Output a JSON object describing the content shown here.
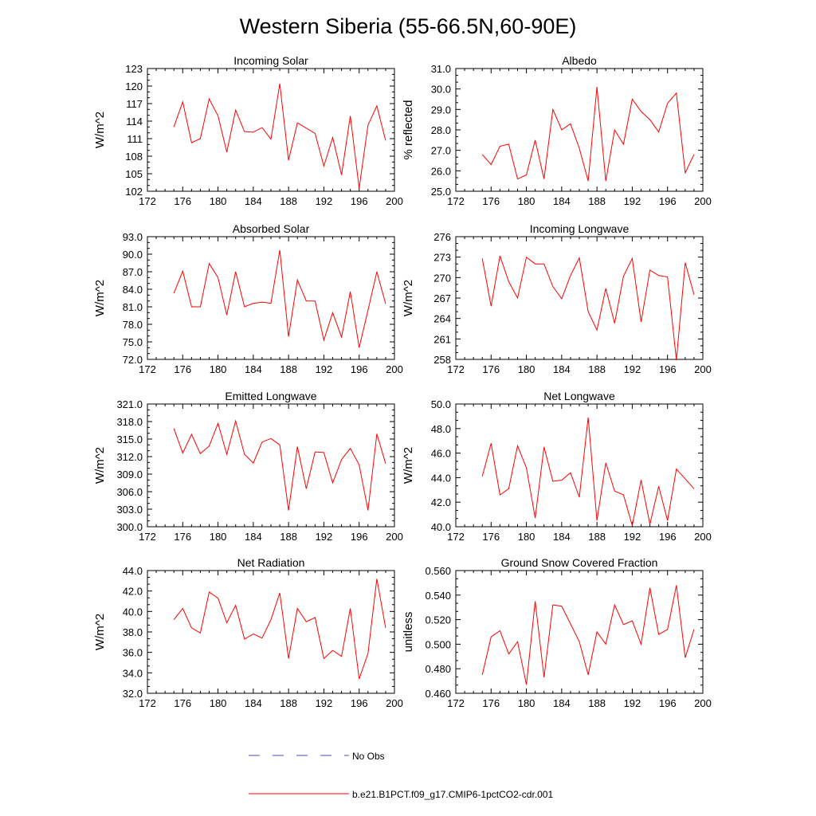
{
  "figure": {
    "title": "Western Siberia (55-66.5N,60-90E)"
  },
  "legend": {
    "items": [
      {
        "label": "No Obs",
        "color": "#4a4ad8",
        "style": "dashed"
      },
      {
        "label": "b.e21.B1PCT.f09_g17.CMIP6-1pctCO2-cdr.001",
        "color": "#ff0000",
        "style": "solid"
      }
    ]
  },
  "chart_data": [
    {
      "type": "line",
      "title": "Incoming Solar",
      "xlabel": "",
      "ylabel": "W/m^2",
      "xlim": [
        172,
        200
      ],
      "xticks": [
        172,
        176,
        180,
        184,
        188,
        192,
        196,
        200
      ],
      "ylim": [
        102,
        123
      ],
      "yticks": [
        "102",
        "105",
        "108",
        "111",
        "114",
        "117",
        "120",
        "123"
      ],
      "grid": false,
      "series": [
        {
          "name": "b.e21.B1PCT.f09_g17.CMIP6-1pctCO2-cdr.001",
          "color": "#ff0000",
          "x": [
            175,
            176,
            177,
            178,
            179,
            180,
            181,
            182,
            183,
            184,
            185,
            186,
            187,
            188,
            189,
            190,
            191,
            192,
            193,
            194,
            195,
            196,
            197,
            198,
            199
          ],
          "y": [
            113.0,
            117.3,
            110.3,
            111.0,
            117.8,
            114.9,
            108.7,
            115.9,
            112.2,
            112.1,
            112.9,
            110.9,
            120.4,
            107.3,
            113.7,
            112.8,
            111.9,
            106.3,
            111.2,
            104.8,
            114.9,
            102.5,
            113.3,
            116.6,
            110.7
          ]
        }
      ]
    },
    {
      "type": "line",
      "title": "Albedo",
      "xlabel": "",
      "ylabel": "% reflected",
      "xlim": [
        172,
        200
      ],
      "xticks": [
        172,
        176,
        180,
        184,
        188,
        192,
        196,
        200
      ],
      "ylim": [
        25.0,
        31.0
      ],
      "yticks": [
        "25.0",
        "26.0",
        "27.0",
        "28.0",
        "29.0",
        "30.0",
        "31.0"
      ],
      "grid": false,
      "series": [
        {
          "name": "b.e21.B1PCT.f09_g17.CMIP6-1pctCO2-cdr.001",
          "color": "#ff0000",
          "x": [
            175,
            176,
            177,
            178,
            179,
            180,
            181,
            182,
            183,
            184,
            185,
            186,
            187,
            188,
            189,
            190,
            191,
            192,
            193,
            194,
            195,
            196,
            197,
            198,
            199
          ],
          "y": [
            26.8,
            26.3,
            27.2,
            27.3,
            25.6,
            25.8,
            27.5,
            25.6,
            29.0,
            28.0,
            28.3,
            27.1,
            25.5,
            30.1,
            25.5,
            28.0,
            27.3,
            29.5,
            28.9,
            28.5,
            27.9,
            29.3,
            29.8,
            25.9,
            26.8
          ]
        }
      ]
    },
    {
      "type": "line",
      "title": "Absorbed Solar",
      "xlabel": "",
      "ylabel": "W/m^2",
      "xlim": [
        172,
        200
      ],
      "xticks": [
        172,
        176,
        180,
        184,
        188,
        192,
        196,
        200
      ],
      "ylim": [
        72.0,
        93.0
      ],
      "yticks": [
        "72.0",
        "75.0",
        "78.0",
        "81.0",
        "84.0",
        "87.0",
        "90.0",
        "93.0"
      ],
      "grid": false,
      "series": [
        {
          "name": "b.e21.B1PCT.f09_g17.CMIP6-1pctCO2-cdr.001",
          "color": "#ff0000",
          "x": [
            175,
            176,
            177,
            178,
            179,
            180,
            181,
            182,
            183,
            184,
            185,
            186,
            187,
            188,
            189,
            190,
            191,
            192,
            193,
            194,
            195,
            196,
            197,
            198,
            199
          ],
          "y": [
            83.3,
            87.1,
            81.0,
            81.0,
            88.4,
            86.0,
            79.6,
            87.0,
            81.0,
            81.6,
            81.8,
            81.6,
            90.7,
            75.9,
            85.6,
            82.0,
            82.0,
            75.3,
            80.0,
            75.8,
            83.6,
            74.0,
            80.4,
            87.0,
            81.5
          ]
        }
      ]
    },
    {
      "type": "line",
      "title": "Incoming Longwave",
      "xlabel": "",
      "ylabel": "W/m^2",
      "xlim": [
        172,
        200
      ],
      "xticks": [
        172,
        176,
        180,
        184,
        188,
        192,
        196,
        200
      ],
      "ylim": [
        258,
        276
      ],
      "yticks": [
        "258",
        "261",
        "264",
        "267",
        "270",
        "273",
        "276"
      ],
      "grid": false,
      "series": [
        {
          "name": "b.e21.B1PCT.f09_g17.CMIP6-1pctCO2-cdr.001",
          "color": "#ff0000",
          "x": [
            175,
            176,
            177,
            178,
            179,
            180,
            181,
            182,
            183,
            184,
            185,
            186,
            187,
            188,
            189,
            190,
            191,
            192,
            193,
            194,
            195,
            196,
            197,
            198,
            199
          ],
          "y": [
            272.8,
            265.8,
            273.2,
            269.4,
            267.0,
            273.0,
            272.0,
            272.0,
            268.7,
            266.9,
            270.3,
            272.9,
            265.0,
            262.3,
            268.4,
            263.3,
            270.2,
            272.8,
            263.5,
            271.1,
            270.3,
            270.1,
            257.9,
            272.2,
            267.5
          ]
        }
      ]
    },
    {
      "type": "line",
      "title": "Emitted Longwave",
      "xlabel": "",
      "ylabel": "W/m^2",
      "xlim": [
        172,
        200
      ],
      "xticks": [
        172,
        176,
        180,
        184,
        188,
        192,
        196,
        200
      ],
      "ylim": [
        300.0,
        321.0
      ],
      "yticks": [
        "300.0",
        "303.0",
        "306.0",
        "309.0",
        "312.0",
        "315.0",
        "318.0",
        "321.0"
      ],
      "grid": false,
      "series": [
        {
          "name": "b.e21.B1PCT.f09_g17.CMIP6-1pctCO2-cdr.001",
          "color": "#ff0000",
          "x": [
            175,
            176,
            177,
            178,
            179,
            180,
            181,
            182,
            183,
            184,
            185,
            186,
            187,
            188,
            189,
            190,
            191,
            192,
            193,
            194,
            195,
            196,
            197,
            198,
            199
          ],
          "y": [
            316.8,
            312.6,
            315.8,
            312.5,
            313.8,
            317.7,
            312.4,
            318.1,
            312.4,
            310.9,
            314.5,
            315.1,
            314.0,
            302.8,
            313.7,
            306.5,
            312.8,
            312.7,
            307.5,
            311.5,
            313.4,
            310.6,
            302.8,
            315.9,
            310.8
          ]
        }
      ]
    },
    {
      "type": "line",
      "title": "Net Longwave",
      "xlabel": "",
      "ylabel": "W/m^2",
      "xlim": [
        172,
        200
      ],
      "xticks": [
        172,
        176,
        180,
        184,
        188,
        192,
        196,
        200
      ],
      "ylim": [
        40.0,
        50.0
      ],
      "yticks": [
        "40.0",
        "42.0",
        "44.0",
        "46.0",
        "48.0",
        "50.0"
      ],
      "grid": false,
      "series": [
        {
          "name": "b.e21.B1PCT.f09_g17.CMIP6-1pctCO2-cdr.001",
          "color": "#ff0000",
          "x": [
            175,
            176,
            177,
            178,
            179,
            180,
            181,
            182,
            183,
            184,
            185,
            186,
            187,
            188,
            189,
            190,
            191,
            192,
            193,
            194,
            195,
            196,
            197,
            198,
            199
          ],
          "y": [
            44.1,
            46.8,
            42.6,
            43.1,
            46.6,
            44.8,
            40.7,
            46.5,
            43.7,
            43.8,
            44.4,
            42.4,
            48.9,
            40.5,
            45.2,
            42.9,
            42.6,
            40.1,
            43.8,
            40.2,
            43.3,
            40.5,
            44.7,
            43.9,
            43.1
          ]
        }
      ]
    },
    {
      "type": "line",
      "title": "Net Radiation",
      "xlabel": "",
      "ylabel": "W/m^2",
      "xlim": [
        172,
        200
      ],
      "xticks": [
        172,
        176,
        180,
        184,
        188,
        192,
        196,
        200
      ],
      "ylim": [
        32.0,
        44.0
      ],
      "yticks": [
        "32.0",
        "34.0",
        "36.0",
        "38.0",
        "40.0",
        "42.0",
        "44.0"
      ],
      "grid": false,
      "series": [
        {
          "name": "b.e21.B1PCT.f09_g17.CMIP6-1pctCO2-cdr.001",
          "color": "#ff0000",
          "x": [
            175,
            176,
            177,
            178,
            179,
            180,
            181,
            182,
            183,
            184,
            185,
            186,
            187,
            188,
            189,
            190,
            191,
            192,
            193,
            194,
            195,
            196,
            197,
            198,
            199
          ],
          "y": [
            39.2,
            40.3,
            38.4,
            37.9,
            41.9,
            41.3,
            38.9,
            40.6,
            37.3,
            37.8,
            37.4,
            39.2,
            41.8,
            35.4,
            40.3,
            39.0,
            39.4,
            35.4,
            36.2,
            35.6,
            40.3,
            33.4,
            35.9,
            43.2,
            38.4
          ]
        }
      ]
    },
    {
      "type": "line",
      "title": "Ground Snow Covered Fraction",
      "xlabel": "",
      "ylabel": "unitless",
      "xlim": [
        172,
        200
      ],
      "xticks": [
        172,
        176,
        180,
        184,
        188,
        192,
        196,
        200
      ],
      "ylim": [
        0.46,
        0.56
      ],
      "yticks": [
        "0.460",
        "0.480",
        "0.500",
        "0.520",
        "0.540",
        "0.560"
      ],
      "grid": false,
      "series": [
        {
          "name": "b.e21.B1PCT.f09_g17.CMIP6-1pctCO2-cdr.001",
          "color": "#ff0000",
          "x": [
            175,
            176,
            177,
            178,
            179,
            180,
            181,
            182,
            183,
            184,
            186,
            187,
            188,
            189,
            190,
            191,
            192,
            193,
            194,
            195,
            196,
            197,
            198,
            199
          ],
          "y": [
            0.475,
            0.506,
            0.511,
            0.492,
            0.502,
            0.467,
            0.535,
            0.473,
            0.532,
            0.531,
            0.502,
            0.475,
            0.51,
            0.5,
            0.532,
            0.516,
            0.519,
            0.5,
            0.546,
            0.508,
            0.512,
            0.548,
            0.489,
            0.512
          ]
        }
      ]
    }
  ]
}
